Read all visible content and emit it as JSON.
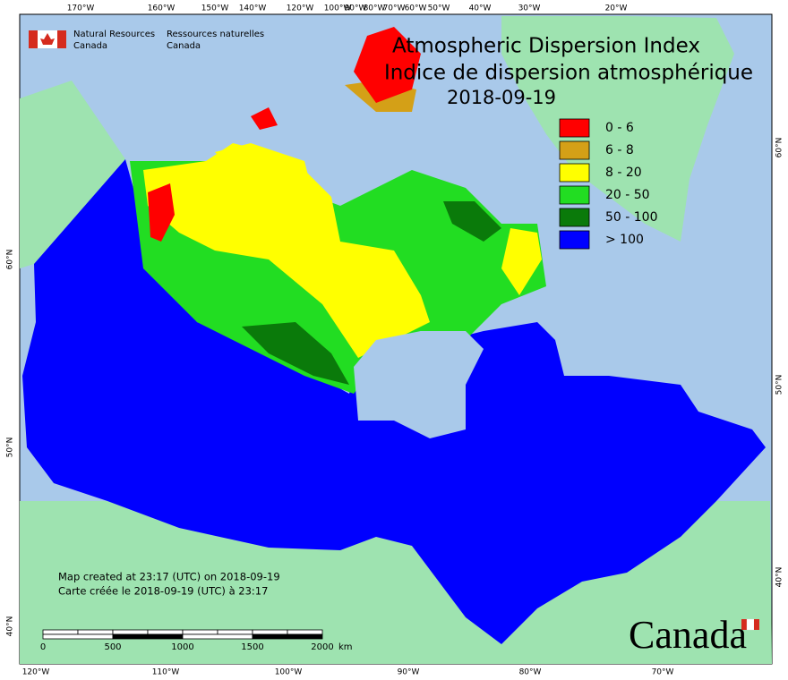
{
  "header": {
    "agency_en": "Natural Resources",
    "agency_en_country": "Canada",
    "agency_fr": "Ressources naturelles",
    "agency_fr_country": "Canada"
  },
  "title": {
    "en": "Atmospheric Dispersion Index",
    "fr": "Indice de dispersion atmosphérique",
    "date": "2018-09-19"
  },
  "legend": [
    {
      "label": "0 - 6",
      "color": "#ff0000"
    },
    {
      "label": "6 - 8",
      "color": "#d4a017"
    },
    {
      "label": "8 - 20",
      "color": "#ffff00"
    },
    {
      "label": "20 - 50",
      "color": "#22dd22"
    },
    {
      "label": "50 - 100",
      "color": "#0a7a0a"
    },
    {
      "label": "> 100",
      "color": "#0000ff"
    }
  ],
  "top_axis": [
    "170°W",
    "160°W",
    "150°W",
    "140°W",
    "120°W",
    "100°W",
    "90°W",
    "80°W",
    "70°W",
    "60°W",
    "50°W",
    "40°W",
    "30°W",
    "20°W"
  ],
  "bottom_axis": [
    "120°W",
    "110°W",
    "100°W",
    "90°W",
    "80°W",
    "70°W"
  ],
  "left_axis": [
    "60°N",
    "50°N",
    "40°N"
  ],
  "right_axis": [
    "60°N",
    "50°N",
    "40°N"
  ],
  "notes": [
    "Map created at 23:17 (UTC) on 2018-09-19",
    "Carte créée le 2018-09-19 (UTC) à 23:17"
  ],
  "scale_bar": {
    "labels": [
      "0",
      "500",
      "1000",
      "1500",
      "2000"
    ],
    "unit": "km"
  },
  "wordmark": "Canada"
}
